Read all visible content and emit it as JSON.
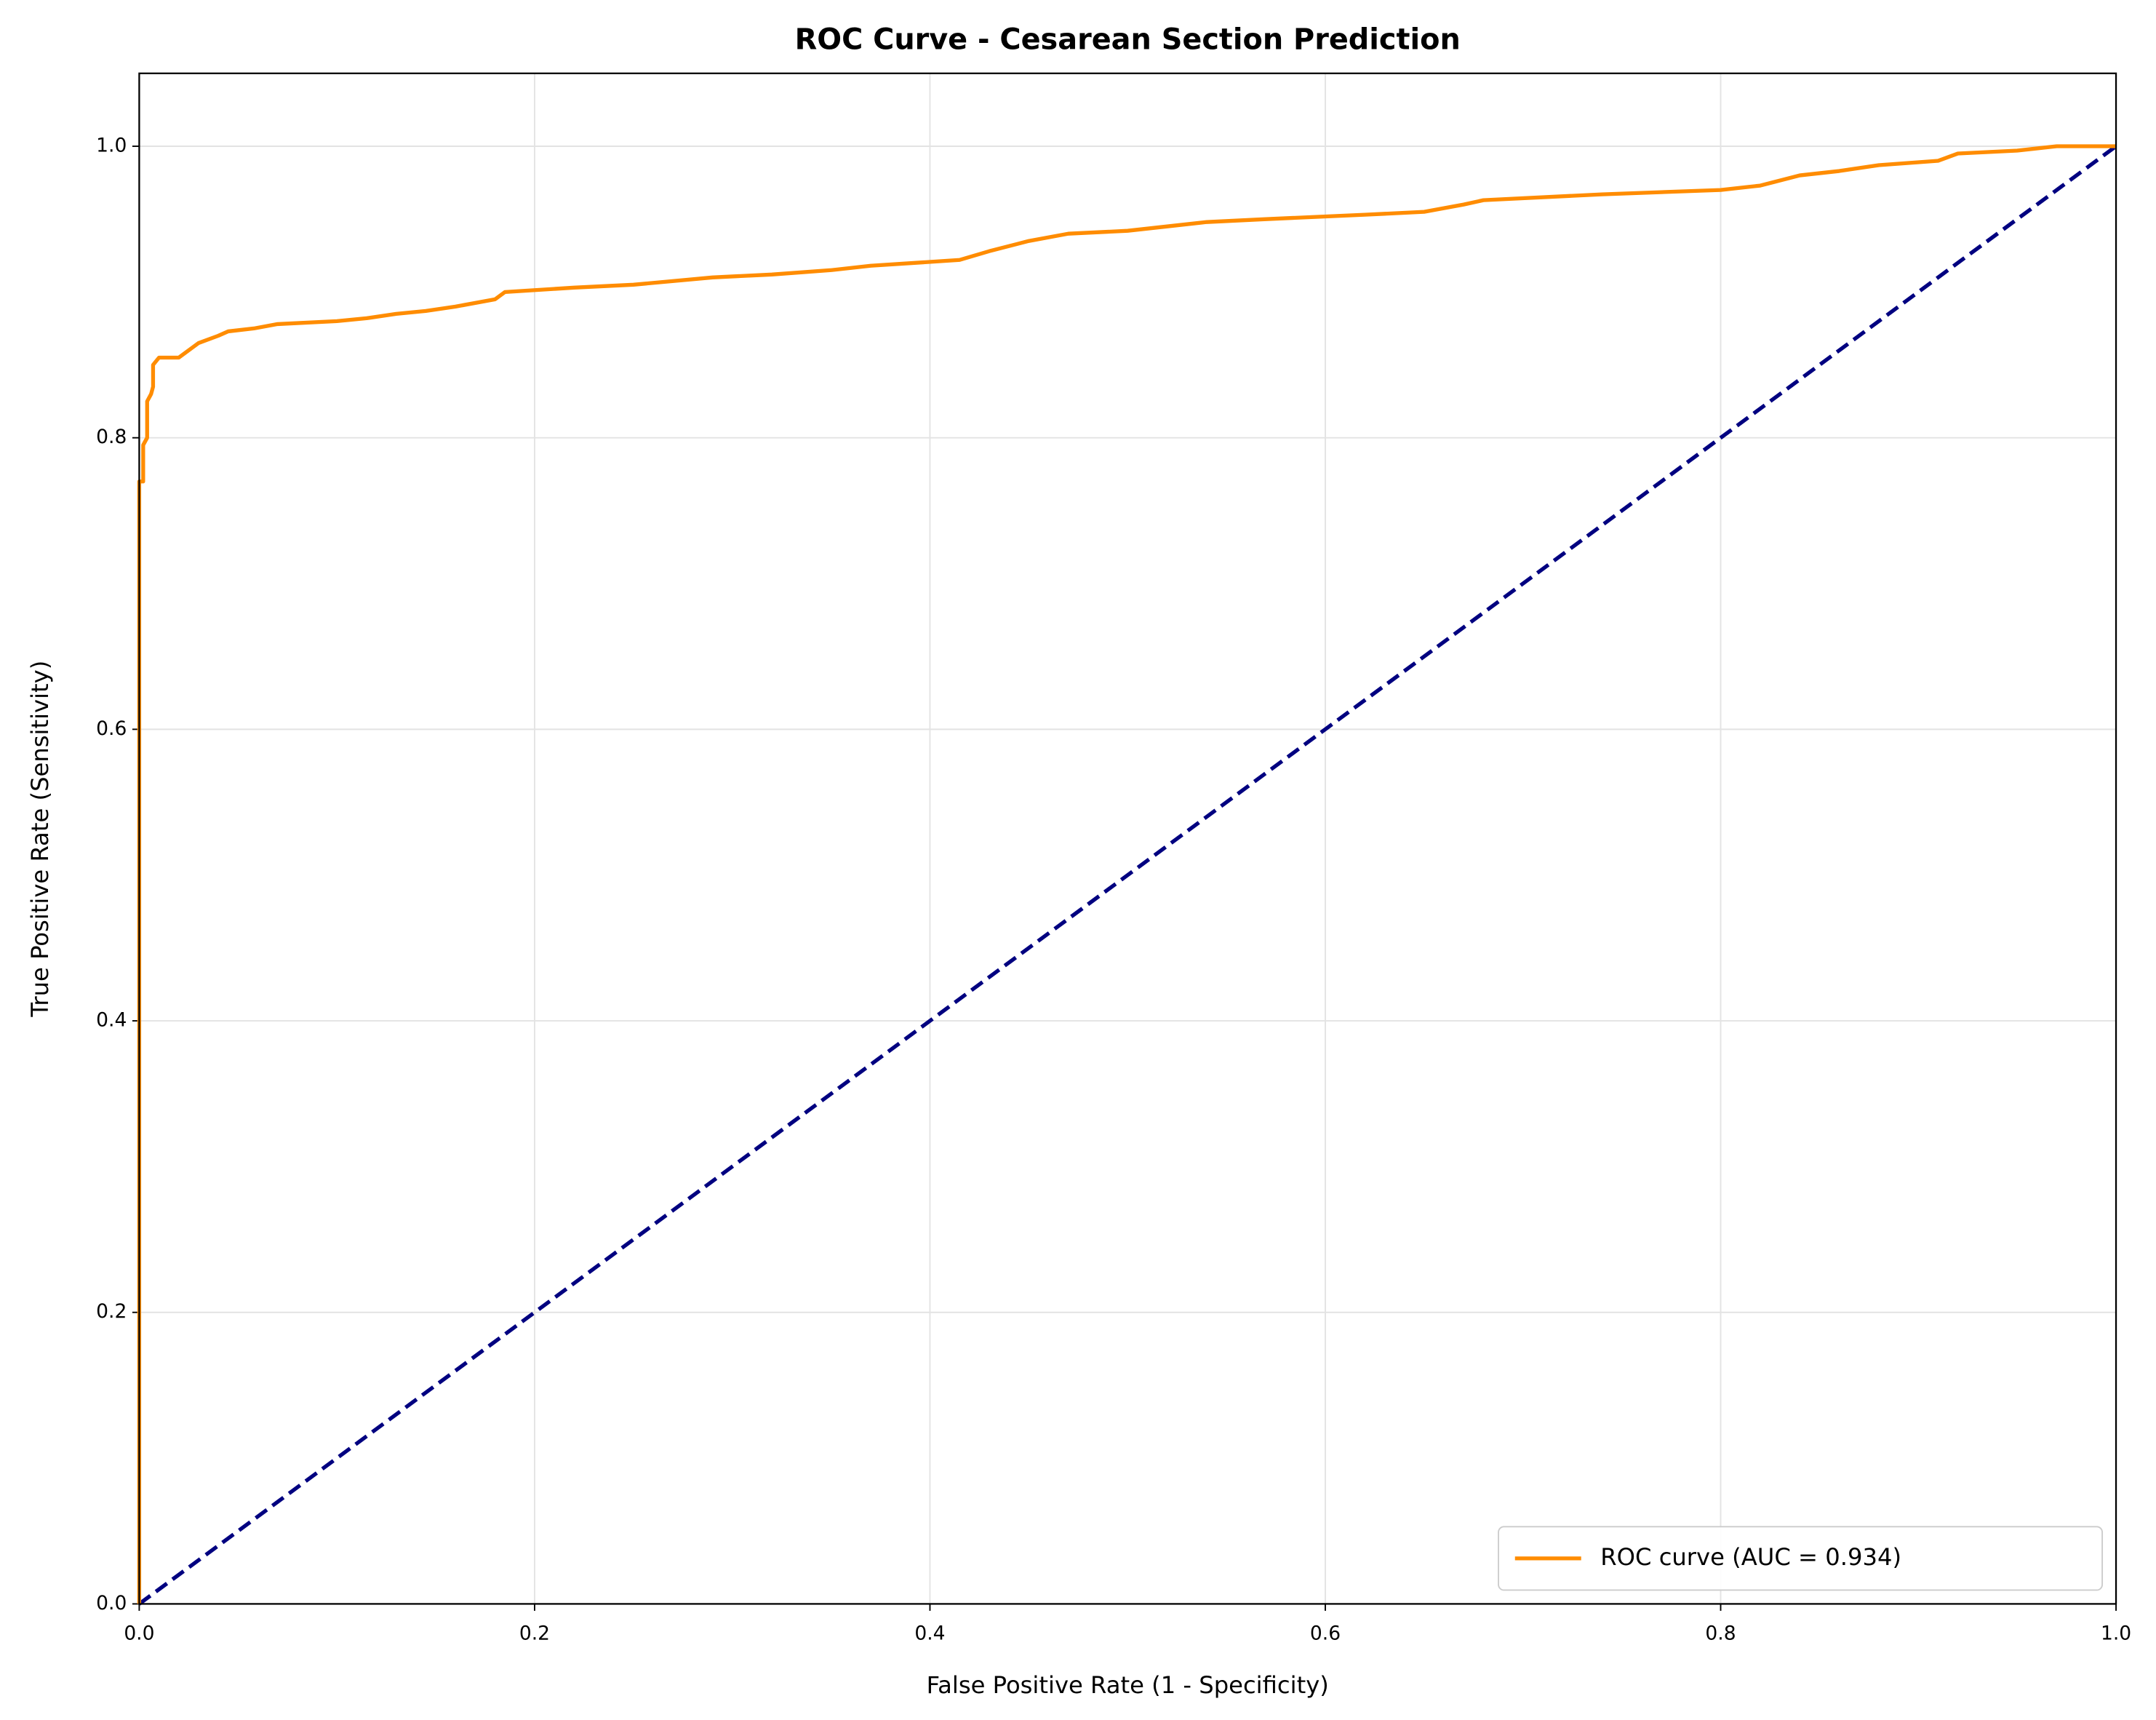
{
  "chart_data": {
    "type": "line",
    "title": "ROC Curve - Cesarean Section Prediction",
    "x_label": "False Positive Rate (1 - Specificity)",
    "y_label": "True Positive Rate (Sensitivity)",
    "xlim": [
      0,
      1
    ],
    "ylim": [
      0,
      1.05
    ],
    "xticks": [
      {
        "value": 0,
        "label": "0.0"
      },
      0.2,
      0.4,
      0.6,
      0.8,
      {
        "value": 1,
        "label": "1.0"
      }
    ],
    "yticks": [
      {
        "value": 0,
        "label": "0.0"
      },
      0.2,
      0.4,
      0.6,
      0.8,
      {
        "value": 1,
        "label": "1.0"
      }
    ],
    "grid": true,
    "legend": "lower right",
    "series": [
      {
        "name": "ROC curve (AUC = 0.934)",
        "color": "#ff8c00",
        "dash": false,
        "x": [
          0,
          0,
          0.002,
          0.002,
          0.004,
          0.004,
          0.006,
          0.007,
          0.007,
          0.01,
          0.02,
          0.025,
          0.03,
          0.04,
          0.045,
          0.058,
          0.07,
          0.1,
          0.115,
          0.13,
          0.145,
          0.16,
          0.18,
          0.185,
          0.22,
          0.25,
          0.29,
          0.32,
          0.35,
          0.37,
          0.415,
          0.43,
          0.45,
          0.47,
          0.5,
          0.52,
          0.54,
          0.57,
          0.62,
          0.65,
          0.67,
          0.68,
          0.74,
          0.8,
          0.82,
          0.84,
          0.86,
          0.88,
          0.91,
          0.92,
          0.95,
          0.97,
          1.0
        ],
        "values": [
          0,
          0.77,
          0.77,
          0.795,
          0.8,
          0.825,
          0.83,
          0.835,
          0.85,
          0.855,
          0.855,
          0.86,
          0.865,
          0.87,
          0.873,
          0.875,
          0.878,
          0.88,
          0.882,
          0.885,
          0.887,
          0.89,
          0.895,
          0.9,
          0.903,
          0.905,
          0.91,
          0.912,
          0.915,
          0.918,
          0.922,
          0.928,
          0.935,
          0.94,
          0.942,
          0.945,
          0.948,
          0.95,
          0.953,
          0.955,
          0.96,
          0.963,
          0.967,
          0.97,
          0.973,
          0.98,
          0.983,
          0.987,
          0.99,
          0.995,
          0.997,
          1.0,
          1.0
        ]
      },
      {
        "name": null,
        "color": "#000080",
        "dash": true,
        "x": [
          0,
          1
        ],
        "values": [
          0,
          1
        ]
      }
    ]
  }
}
